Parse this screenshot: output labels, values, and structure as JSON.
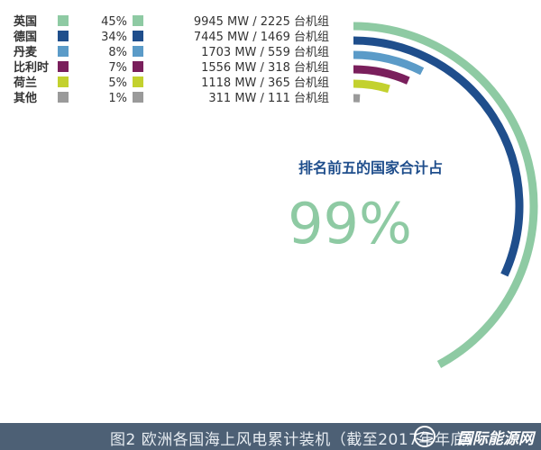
{
  "chart_data": {
    "type": "bar",
    "orientation": "radial",
    "categories": [
      "英国",
      "德国",
      "丹麦",
      "比利时",
      "荷兰",
      "其他"
    ],
    "percent_labels": [
      "45%",
      "34%",
      "8%",
      "7%",
      "5%",
      "1%"
    ],
    "share_percent": [
      45,
      34,
      8,
      7,
      5,
      1
    ],
    "capacity_labels": [
      "9945 MW / 2225 台机组",
      "7445 MW / 1469 台机组",
      "1703 MW / 559 台机组",
      "1556 MW / 318 台机组",
      "1118 MW / 365 台机组",
      "311 MW / 111 台机组"
    ],
    "capacity_mw": [
      9945,
      7445,
      1703,
      1556,
      1118,
      311
    ],
    "turbines": [
      2225,
      1469,
      559,
      318,
      365,
      111
    ],
    "colors": [
      "#8ecaa3",
      "#1f4e8c",
      "#5b9bc8",
      "#7a1f5c",
      "#c3d12e",
      "#9a9a9a"
    ],
    "annotation_label": "排名前五的国家合计占",
    "annotation_value": "99%",
    "legend_position": "top-left",
    "grid": false
  },
  "caption": "图2 欧洲各国海上风电累计装机（截至2017年年底）",
  "watermark": "国际能源网",
  "watermark_small": "IN-EN.COM"
}
